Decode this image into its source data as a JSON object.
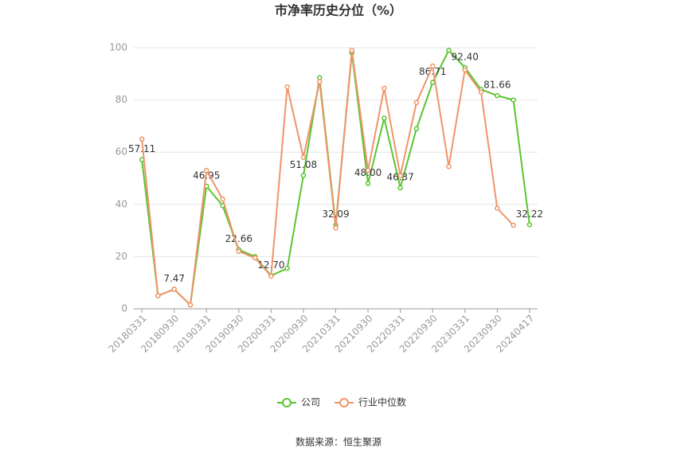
{
  "chart_data": {
    "type": "line",
    "title": "市净率历史分位（%）",
    "categories": [
      "20180331",
      null,
      "20180930",
      null,
      "20190331",
      null,
      "20190930",
      null,
      "20200331",
      null,
      "20200930",
      null,
      "20210331",
      null,
      "20210930",
      null,
      "20220331",
      null,
      "20220930",
      null,
      "20230331",
      null,
      "20230930",
      null,
      "20240417"
    ],
    "series": [
      {
        "name": "公司",
        "color": "#5ac530",
        "values": [
          57.11,
          5,
          7.47,
          1.5,
          46.95,
          39.5,
          22.66,
          20,
          12.7,
          15.5,
          51.08,
          88.5,
          32.09,
          98,
          48,
          73,
          46.37,
          69,
          86.71,
          99,
          92.4,
          84,
          81.66,
          80,
          32.22
        ],
        "value_labels": [
          "57.11",
          null,
          "7.47",
          null,
          "46.95",
          null,
          "22.66",
          null,
          "12.70",
          null,
          "51.08",
          null,
          "32.09",
          null,
          "48.00",
          null,
          "46.37",
          null,
          "86.71",
          null,
          "92.40",
          null,
          "81.66",
          null,
          "32.22"
        ]
      },
      {
        "name": "行业中位数",
        "color": "#f0946a",
        "values": [
          65,
          5,
          7.5,
          1.5,
          53,
          42,
          22,
          19.5,
          12.5,
          85,
          58,
          87,
          31,
          99,
          53,
          84.5,
          51,
          79,
          93,
          54.5,
          91.5,
          83,
          38.5,
          32,
          null
        ]
      }
    ],
    "ylim": [
      0,
      100
    ],
    "yticks": [
      0,
      20,
      40,
      60,
      80,
      100
    ],
    "grid": true,
    "legend": "bottom",
    "source": "数据来源：恒生聚源"
  }
}
